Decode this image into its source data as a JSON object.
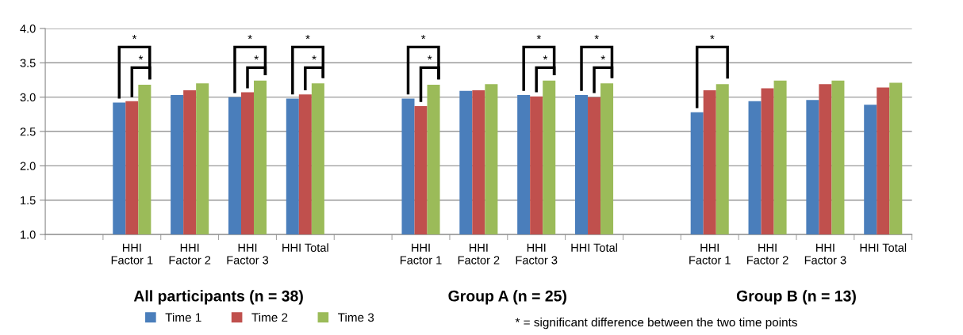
{
  "chart_data": {
    "type": "bar",
    "categories": [
      null,
      "HHI\nFactor 1",
      "HHI\nFactor 2",
      "HHI\nFactor 3",
      "HHI Total",
      null,
      "HHI\nFactor 1",
      "HHI\nFactor 2",
      "HHI\nFactor 3",
      "HHI Total",
      null,
      "HHI\nFactor 1",
      "HHI\nFactor 2",
      "HHI\nFactor 3",
      "HHI Total"
    ],
    "series": [
      {
        "name": "Time 1",
        "color": "#4a7ebb",
        "values": [
          null,
          2.92,
          3.03,
          3.0,
          2.98,
          null,
          2.98,
          3.09,
          3.03,
          3.03,
          null,
          2.78,
          2.94,
          2.96,
          2.89
        ]
      },
      {
        "name": "Time 2",
        "color": "#c0504d",
        "values": [
          null,
          2.94,
          3.1,
          3.07,
          3.04,
          null,
          2.87,
          3.1,
          3.01,
          3.0,
          null,
          3.1,
          3.13,
          3.19,
          3.14
        ]
      },
      {
        "name": "Time 3",
        "color": "#9bbb59",
        "values": [
          null,
          3.18,
          3.2,
          3.24,
          3.2,
          null,
          3.18,
          3.19,
          3.24,
          3.2,
          null,
          3.19,
          3.24,
          3.24,
          3.21
        ]
      }
    ],
    "ylim": [
      1.0,
      4.0
    ],
    "yticks": [
      {
        "value": 1.0,
        "label": "1.0"
      },
      {
        "value": 1.5,
        "label": "1.5"
      },
      {
        "value": 2.0,
        "label": "2.0"
      },
      {
        "value": 2.5,
        "label": "2.5"
      },
      {
        "value": 3.0,
        "label": "3.0"
      },
      {
        "value": 3.5,
        "label": "3.5"
      },
      {
        "value": 4.0,
        "label": "4.0"
      }
    ],
    "grid": "y",
    "legend": "bottom",
    "annotations": [
      "All participants (n = 38)",
      "Group A (n = 25)",
      "Group B (n = 13)",
      "* = significant difference between the two time points",
      "*",
      "*",
      "*",
      "*",
      "*",
      "*",
      "*",
      "*",
      "*",
      "*",
      "*",
      "*",
      "*"
    ]
  }
}
